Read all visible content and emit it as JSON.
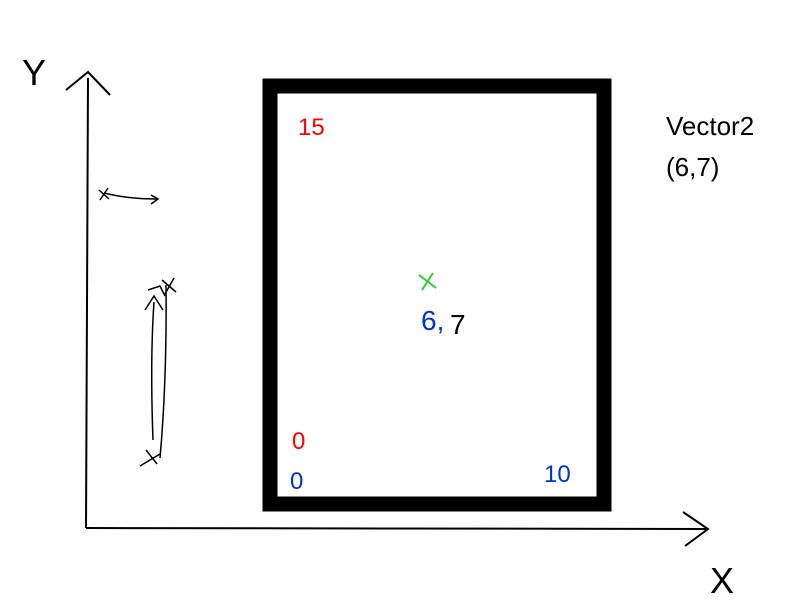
{
  "axes": {
    "y_label": "Y",
    "x_label": "X"
  },
  "frame": {
    "y_max_label": "15",
    "y_min_label": "0",
    "x_min_label": "0",
    "x_max_label": "10"
  },
  "point": {
    "x_label": "6,",
    "y_label": "7"
  },
  "vector": {
    "name": "Vector2",
    "value": "(6,7)"
  },
  "colors": {
    "ink": "#000000",
    "y_range": "#ff0000",
    "x_range": "#0033cc",
    "point_marker": "#33cc33"
  }
}
